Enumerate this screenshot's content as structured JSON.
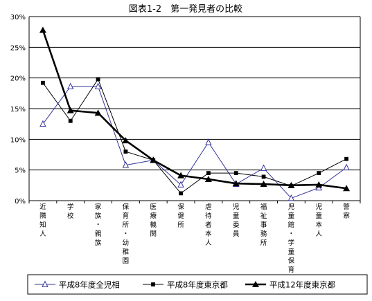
{
  "chart_data": {
    "type": "line",
    "title": "図表1-2　第一発見者の比較",
    "xlabel": "",
    "ylabel": "",
    "ylim": [
      0,
      30
    ],
    "yticks": [
      "0%",
      "5%",
      "10%",
      "15%",
      "20%",
      "25%",
      "30%"
    ],
    "grid": true,
    "legend_position": "bottom",
    "categories": [
      "近隣知人",
      "学校",
      "家族・親族",
      "保育所・幼稚園",
      "医療機関",
      "保健所",
      "虐待者本人",
      "児童委員",
      "福祉事務所",
      "児童館・学童保育",
      "児童本人",
      "警察"
    ],
    "series": [
      {
        "name": "平成8年度全児相",
        "marker": "triangle-open",
        "color": "#333399",
        "values": [
          12.5,
          18.6,
          18.6,
          5.8,
          6.6,
          2.6,
          9.5,
          2.7,
          5.3,
          0.4,
          2.1,
          5.4
        ]
      },
      {
        "name": "平成8年度東京都",
        "marker": "square",
        "color": "#000000",
        "values": [
          19.2,
          13.0,
          19.8,
          8.0,
          6.6,
          1.2,
          4.5,
          4.5,
          3.9,
          2.4,
          4.5,
          6.8
        ]
      },
      {
        "name": "平成12年度東京都",
        "marker": "triangle-filled",
        "color": "#000000",
        "values": [
          27.8,
          14.7,
          14.3,
          9.8,
          6.6,
          4.1,
          3.5,
          2.8,
          2.7,
          2.5,
          2.6,
          2.0
        ]
      }
    ]
  }
}
